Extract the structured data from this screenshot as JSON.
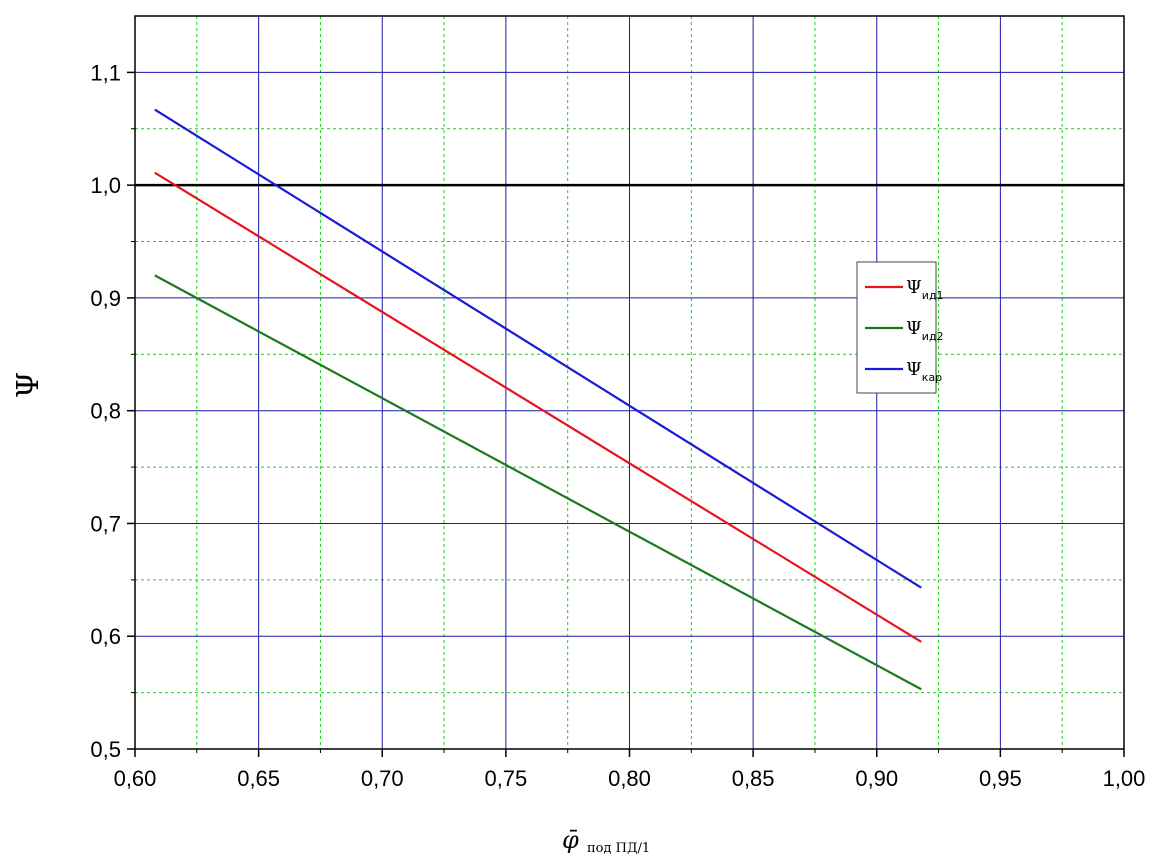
{
  "chart_data": {
    "type": "line",
    "xlabel": {
      "main": "φ̄",
      "sub": "под ПД/1"
    },
    "ylabel": "Ψ",
    "xlim": [
      0.6,
      1.0
    ],
    "ylim": [
      0.5,
      1.15
    ],
    "x_ticks": [
      "0,60",
      "0,65",
      "0,70",
      "0,75",
      "0,80",
      "0,85",
      "0,90",
      "0,95",
      "1,00"
    ],
    "y_ticks": [
      "0,5",
      "0,6",
      "0,7",
      "0,8",
      "0,9",
      "1,0",
      "1,1"
    ],
    "x_tick_values": [
      0.6,
      0.65,
      0.7,
      0.75,
      0.8,
      0.85,
      0.9,
      0.95,
      1.0
    ],
    "y_tick_values": [
      0.5,
      0.6,
      0.7,
      0.8,
      0.9,
      1.0,
      1.1
    ],
    "grid": {
      "major": true,
      "minor": true,
      "major_color": "#1a1aa8",
      "minor_color": "#22cc22"
    },
    "reference_line": {
      "y": 1.0,
      "color": "#000000"
    },
    "legend_position": "right",
    "series": [
      {
        "name": "Ψ",
        "name_sub": "ид1",
        "color": "#e8141c",
        "x": [
          0.608,
          0.918
        ],
        "y": [
          1.011,
          0.595
        ]
      },
      {
        "name": "Ψ",
        "name_sub": "ид2",
        "color": "#1b7a1b",
        "x": [
          0.608,
          0.918
        ],
        "y": [
          0.92,
          0.553
        ]
      },
      {
        "name": "Ψ",
        "name_sub": "кар",
        "color": "#1a1ad8",
        "x": [
          0.608,
          0.918
        ],
        "y": [
          1.067,
          0.643
        ]
      }
    ]
  }
}
